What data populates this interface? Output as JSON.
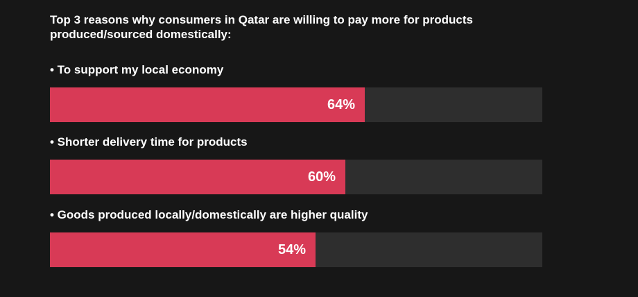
{
  "chart_data": {
    "type": "bar",
    "orientation": "horizontal",
    "title": "Top 3 reasons why consumers in Qatar are willing to pay more for products produced/sourced domestically:",
    "categories": [
      "• To support my local economy",
      "• Shorter delivery time for products",
      "• Goods produced locally/domestically are higher quality"
    ],
    "values": [
      64,
      60,
      54
    ],
    "value_labels": [
      "64%",
      "60%",
      "54%"
    ],
    "xlim": [
      0,
      100
    ],
    "grid": false,
    "legend": "none"
  },
  "colors": {
    "background": "#171717",
    "bar": "#d83a56",
    "track": "#2e2e2e",
    "text": "#ffffff"
  }
}
